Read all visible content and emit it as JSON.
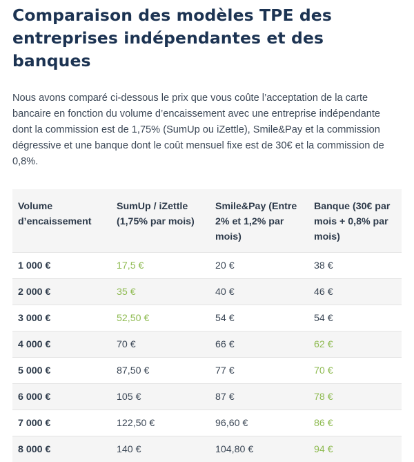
{
  "title": "Comparaison des modèles TPE des entreprises indépendantes et des banques",
  "intro": "Nous avons comparé ci-dessous le prix que vous coûte l’acceptation de la carte bancaire en fonction du volume d’encaissement avec une entreprise indépendante dont la commission est de 1,75% (SumUp ou iZettle), Smile&Pay et la commission dégressive et une banque dont le coût mensuel fixe est de 30€ et la commission de 0,8%.",
  "table": {
    "headers": [
      "Volume d’encaissement",
      "SumUp / iZettle (1,75% par mois)",
      "Smile&Pay (Entre 2% et 1,2% par mois)",
      "Banque (30€ par mois + 0,8% par mois)"
    ],
    "rows": [
      {
        "volume": "1 000 €",
        "sumup": "17,5 €",
        "smilepay": "20 €",
        "banque": "38 €",
        "best": "sumup"
      },
      {
        "volume": "2 000 €",
        "sumup": "35 €",
        "smilepay": "40 €",
        "banque": "46 €",
        "best": "sumup"
      },
      {
        "volume": "3 000 €",
        "sumup": "52,50 €",
        "smilepay": "54 €",
        "banque": "54 €",
        "best": "sumup"
      },
      {
        "volume": "4 000 €",
        "sumup": "70 €",
        "smilepay": "66 €",
        "banque": "62 €",
        "best": "banque"
      },
      {
        "volume": "5 000 €",
        "sumup": "87,50 €",
        "smilepay": "77 €",
        "banque": "70 €",
        "best": "banque"
      },
      {
        "volume": "6 000 €",
        "sumup": "105 €",
        "smilepay": "87 €",
        "banque": "78 €",
        "best": "banque"
      },
      {
        "volume": "7 000 €",
        "sumup": "122,50 €",
        "smilepay": "96,60 €",
        "banque": "86 €",
        "best": "banque"
      },
      {
        "volume": "8 000 €",
        "sumup": "140 €",
        "smilepay": "104,80 €",
        "banque": "94 €",
        "best": "banque"
      }
    ]
  },
  "colors": {
    "title": "#1c3352",
    "text": "#3b4756",
    "highlight": "#8fbb52",
    "stripe": "#f5f5f5"
  }
}
